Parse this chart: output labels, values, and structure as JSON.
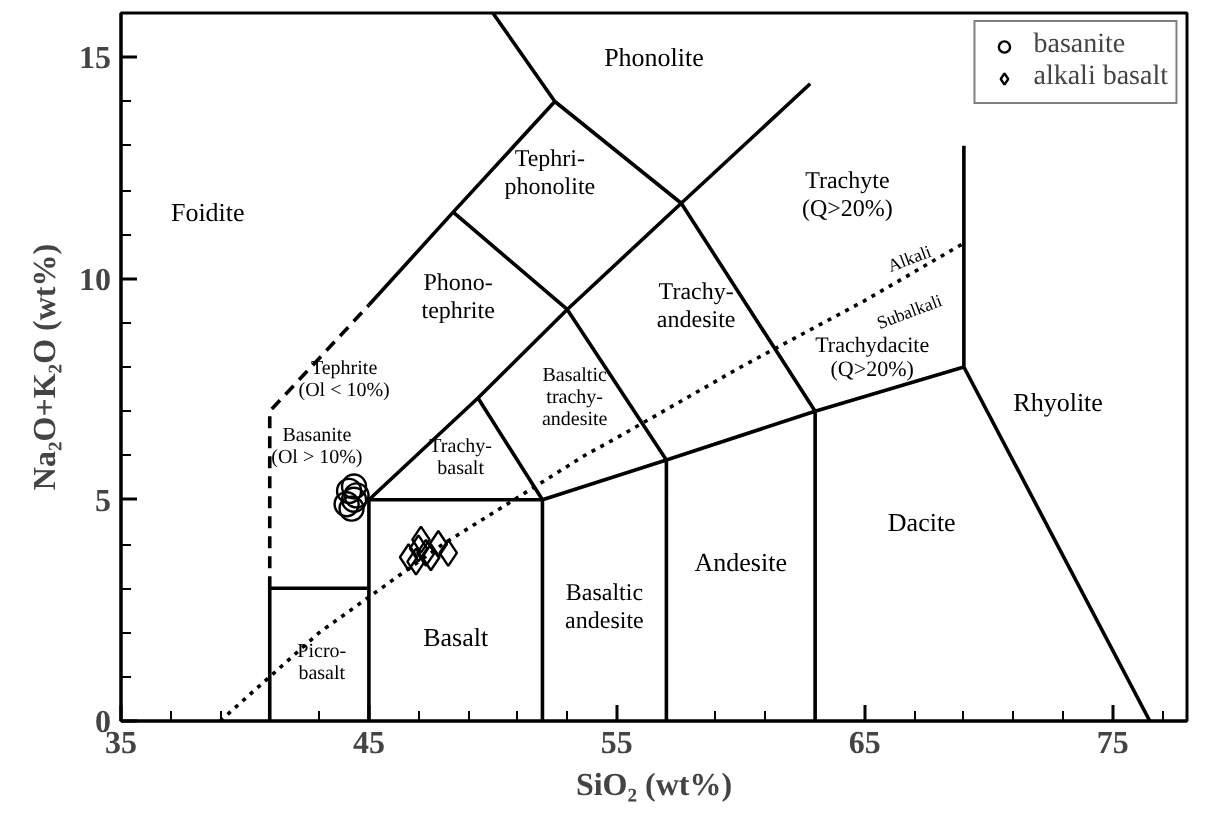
{
  "chart_data": {
    "type": "scatter",
    "xlabel": "SiO₂ (wt%)",
    "ylabel": "Na₂O+K₂O (wt%)",
    "xlim": [
      35,
      78
    ],
    "ylim": [
      0,
      16
    ],
    "xticks": [
      35,
      {
        "value": 37,
        "label": null
      },
      {
        "value": 39,
        "label": null
      },
      {
        "value": 41,
        "label": null
      },
      {
        "value": 43,
        "label": null
      },
      45,
      {
        "value": 47,
        "label": null
      },
      {
        "value": 49,
        "label": null
      },
      {
        "value": 51,
        "label": null
      },
      {
        "value": 53,
        "label": null
      },
      55,
      {
        "value": 57,
        "label": null
      },
      {
        "value": 59,
        "label": null
      },
      {
        "value": 61,
        "label": null
      },
      {
        "value": 63,
        "label": null
      },
      65,
      {
        "value": 67,
        "label": null
      },
      {
        "value": 69,
        "label": null
      },
      {
        "value": 71,
        "label": null
      },
      {
        "value": 73,
        "label": null
      },
      75,
      {
        "value": 77,
        "label": null
      }
    ],
    "yticks": [
      0,
      {
        "value": 1,
        "label": null
      },
      {
        "value": 2,
        "label": null
      },
      {
        "value": 3,
        "label": null
      },
      {
        "value": 4,
        "label": null
      },
      5,
      {
        "value": 6,
        "label": null
      },
      {
        "value": 7,
        "label": null
      },
      {
        "value": 8,
        "label": null
      },
      {
        "value": 9,
        "label": null
      },
      10,
      {
        "value": 11,
        "label": null
      },
      {
        "value": 12,
        "label": null
      },
      {
        "value": 13,
        "label": null
      },
      {
        "value": 14,
        "label": null
      },
      15
    ],
    "grid": false,
    "legend": "top right",
    "series": [
      {
        "name": "basanite",
        "marker": "circle",
        "color": "#000000",
        "x": [
          44.2,
          44.4,
          44.3,
          44.5,
          44.1,
          44.4
        ],
        "values": [
          5.2,
          5.0,
          4.8,
          5.1,
          4.9,
          5.3
        ]
      },
      {
        "name": "alkali basalt",
        "marker": "diamond",
        "color": "#000000",
        "x": [
          46.6,
          47.0,
          47.3,
          47.5,
          47.8,
          48.2,
          47.1,
          46.9
        ],
        "values": [
          3.7,
          3.9,
          3.8,
          3.7,
          4.0,
          3.8,
          4.1,
          3.6
        ]
      },
      {
        "type": "line",
        "marker": "none",
        "line_style": "dashed",
        "color": "#000000",
        "x": [
          41,
          41,
          45
        ],
        "values": [
          3,
          7,
          9.4
        ]
      },
      {
        "type": "line",
        "marker": "none",
        "line_style": "dotted",
        "color": "#000000",
        "x": [
          39,
          40,
          43,
          45,
          48,
          50,
          53.7,
          55,
          60,
          65,
          69
        ],
        "values": [
          0,
          0.5,
          2,
          2.8,
          4,
          4.7,
          6,
          6.4,
          8,
          9.5,
          10.8
        ]
      },
      {
        "type": "line",
        "marker": "none",
        "line_style": "solid",
        "color": "#000000",
        "x": [
          41,
          41,
          45,
          null,
          45,
          45,
          52,
          57,
          63,
          69,
          76.5,
          null,
          52,
          52,
          null,
          57,
          57,
          null,
          63,
          63,
          null,
          69,
          69,
          null,
          45,
          48.4,
          52.5,
          57.6,
          63,
          null,
          45,
          49.4,
          53,
          57.6,
          62.8,
          null,
          49.4,
          52,
          null,
          48.4,
          53,
          57,
          null,
          52.5,
          50
        ],
        "values": [
          0,
          3,
          3,
          null,
          0,
          5,
          5,
          5.9,
          7,
          8,
          0,
          null,
          0,
          5,
          null,
          0,
          5.9,
          null,
          0,
          7,
          null,
          8,
          13,
          null,
          9.4,
          11.5,
          14,
          11.7,
          7,
          null,
          5,
          7.3,
          9.3,
          11.7,
          14.4,
          null,
          7.3,
          5,
          null,
          11.5,
          9.3,
          5.9,
          null,
          14,
          16
        ]
      }
    ],
    "annotations": [
      "Foidite",
      "Phonolite",
      "Tephri-\nphonolite",
      "Phono-\ntephrite",
      "Trachy-\nandesite",
      "Trachyte\n(Q>20%)",
      "Trachydacite\n(Q>20%)",
      "Alkali",
      "Subalkali",
      "Tephrite\n(Ol < 10%)",
      "Basanite\n(Ol > 10%)",
      "Trachy-\nbasalt",
      "Basaltic\ntrachy-\nandesite",
      "Rhyolite",
      "Dacite",
      "Andesite",
      "Basaltic\nandesite",
      "Basalt",
      "Picro-\nbasalt"
    ]
  }
}
